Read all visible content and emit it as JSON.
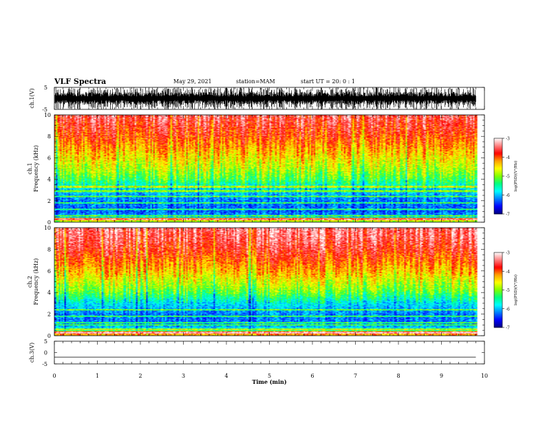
{
  "header": {
    "title": "VLF Spectra",
    "date": "May 29, 2021",
    "station": "station=MAM",
    "start": "start  UT =   20: 0  : 1"
  },
  "colors": {
    "colormap": [
      "#000080",
      "#0000ff",
      "#0080ff",
      "#00ffff",
      "#00ff80",
      "#80ff00",
      "#ffff00",
      "#ffa000",
      "#ff0000",
      "#ff8080",
      "#ffffff"
    ],
    "waveform": "#000000"
  },
  "chart_data": [
    {
      "type": "line",
      "name": "ch1-waveform",
      "ylabel": "ch.1(V)",
      "ylim": [
        -5,
        5
      ],
      "yticks": [
        "5",
        "-5"
      ],
      "xlim": [
        0,
        10
      ],
      "x_data_end": 9.8,
      "description_values": {
        "typical_amplitude": [
          -3,
          3
        ],
        "peak_amplitude": [
          -5,
          5
        ]
      }
    },
    {
      "type": "heatmap",
      "name": "ch1-spectrogram",
      "ylabel": "ch.1\nFrequency  (kHz)",
      "ylim": [
        0,
        10
      ],
      "yticks": [
        "0",
        "2",
        "4",
        "6",
        "8",
        "10"
      ],
      "xlim": [
        0,
        10
      ],
      "x_data_end": 9.8,
      "colorbar": {
        "label": "log(PSD)(V²/Hz)",
        "range": [
          -7,
          -3
        ],
        "ticks": [
          "-3",
          "-4",
          "-5",
          "-6",
          "-7"
        ]
      },
      "log_psd_profile": {
        "freq_khz": [
          0,
          0.3,
          0.5,
          1,
          2,
          3,
          4,
          5,
          6,
          7,
          8,
          9,
          10
        ],
        "level": [
          -5.0,
          -4.2,
          -6.0,
          -6.3,
          -6.2,
          -5.9,
          -5.2,
          -4.8,
          -4.5,
          -4.2,
          -3.9,
          -3.7,
          -3.5
        ]
      },
      "harmonic_lines_khz": [
        0.3,
        0.6,
        1.2,
        1.8,
        2.4,
        2.9,
        3.3
      ]
    },
    {
      "type": "heatmap",
      "name": "ch2-spectrogram",
      "ylabel": "ch.2\nFrequency  (kHz)",
      "ylim": [
        0,
        10
      ],
      "yticks": [
        "0",
        "2",
        "4",
        "6",
        "8",
        "10"
      ],
      "xlim": [
        0,
        10
      ],
      "x_data_end": 9.8,
      "colorbar": {
        "label": "log(PSD)(V²/Hz)",
        "range": [
          -7,
          -3
        ],
        "ticks": [
          "-3",
          "-4",
          "-5",
          "-6",
          "-7"
        ]
      },
      "log_psd_profile": {
        "freq_khz": [
          0,
          0.3,
          0.5,
          1,
          2,
          3,
          4,
          5,
          6,
          7,
          8,
          9,
          10
        ],
        "level": [
          -4.3,
          -4.0,
          -5.5,
          -6.2,
          -6.2,
          -5.8,
          -5.1,
          -4.7,
          -4.3,
          -4.0,
          -3.7,
          -3.5,
          -3.4
        ]
      },
      "harmonic_lines_khz": [
        0.3,
        0.6,
        1.0,
        1.2,
        1.8,
        2.4
      ]
    },
    {
      "type": "line",
      "name": "ch3-waveform",
      "ylabel": "ch.3(V)",
      "ylim": [
        -5,
        5
      ],
      "yticks": [
        "5",
        "0",
        "-5"
      ],
      "xlim": [
        0,
        10
      ],
      "values": [
        {
          "x": 0,
          "y": -2
        },
        {
          "x": 9.8,
          "y": -2
        }
      ]
    }
  ],
  "xaxis": {
    "label": "Time  (min)",
    "ticks": [
      "0",
      "1",
      "2",
      "3",
      "4",
      "5",
      "6",
      "7",
      "8",
      "9",
      "10"
    ],
    "range": [
      0,
      10
    ]
  }
}
